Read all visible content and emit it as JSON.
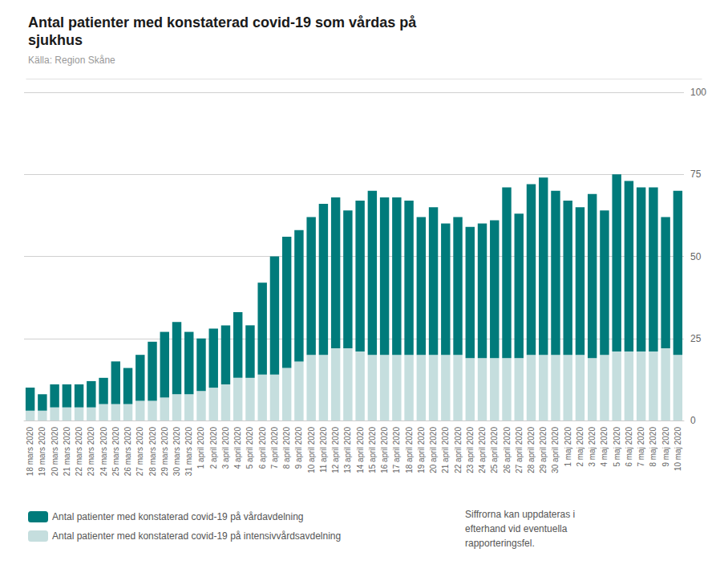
{
  "chart_data": {
    "type": "bar",
    "title": "Antal patienter med konstaterad covid-19 som vårdas på\nsjukhus",
    "subtitle": "Källa: Region Skåne",
    "annotations": [
      "Siffrorna kan uppdateras i\nefterhand vid eventuella\nrapporteringsfel."
    ],
    "stacked": true,
    "grid": true,
    "legend": "bottom",
    "ylim": [
      0,
      100
    ],
    "yticks": [
      0,
      25,
      50,
      75,
      100
    ],
    "categories": [
      "18 mars 2020",
      "19 mars 2020",
      "20 mars 2020",
      "21 mars 2020",
      "22 mars 2020",
      "23 mars 2020",
      "24 mars 2020",
      "25 mars 2020",
      "26 mars 2020",
      "27 mars 2020",
      "28 mars 2020",
      "29 mars 2020",
      "30 mars 2020",
      "31 mars 2020",
      "1 april 2020",
      "2 april 2020",
      "3 april 2020",
      "4 april 2020",
      "5 april 2020",
      "6 april 2020",
      "7 april 2020",
      "8 april 2020",
      "9 april 2020",
      "10 april 2020",
      "11 april 2020",
      "12 april 2020",
      "13 april 2020",
      "14 april 2020",
      "15 april 2020",
      "16 april 2020",
      "17 april 2020",
      "18 april 2020",
      "19 april 2020",
      "20 april 2020",
      "21 april 2020",
      "22 april 2020",
      "23 april 2020",
      "24 april 2020",
      "25 april 2020",
      "26 april 2020",
      "27 april 2020",
      "28 april 2020",
      "29 april 2020",
      "30 april 2020",
      "1 maj 2020",
      "2 maj 2020",
      "3 maj 2020",
      "4 maj 2020",
      "5 maj 2020",
      "6 maj 2020",
      "7 maj 2020",
      "8 maj 2020",
      "9 maj 2020",
      "10 maj 2020"
    ],
    "series": [
      {
        "name": "Antal patienter med konstaterad covid-19 på intensivvårdsavdelning",
        "color": "#c5dede",
        "values": [
          3,
          3,
          4,
          4,
          4,
          4,
          5,
          5,
          5,
          6,
          6,
          7,
          8,
          8,
          9,
          10,
          11,
          13,
          13,
          14,
          14,
          16,
          18,
          20,
          20,
          22,
          22,
          21,
          20,
          20,
          20,
          20,
          20,
          20,
          20,
          20,
          19,
          19,
          19,
          19,
          19,
          20,
          20,
          20,
          20,
          20,
          19,
          20,
          21,
          21,
          21,
          21,
          22,
          20
        ]
      },
      {
        "name": "Antal patienter med konstaterad covid-19 på vårdavdelning",
        "color": "#007b7b",
        "values": [
          7,
          5,
          7,
          7,
          7,
          8,
          8,
          13,
          11,
          14,
          18,
          20,
          22,
          19,
          16,
          18,
          18,
          20,
          16,
          28,
          36,
          40,
          40,
          42,
          46,
          46,
          42,
          46,
          50,
          48,
          48,
          47,
          42,
          45,
          40,
          42,
          40,
          41,
          42,
          52,
          44,
          52,
          54,
          50,
          47,
          45,
          50,
          44,
          54,
          52,
          50,
          50,
          40,
          50
        ]
      }
    ]
  }
}
